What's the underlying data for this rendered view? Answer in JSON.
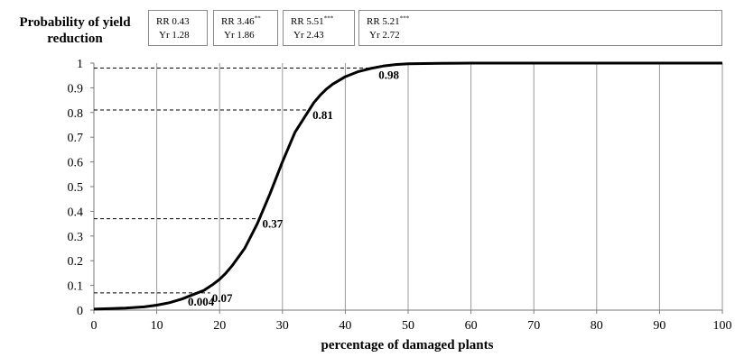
{
  "chart_data": {
    "type": "line",
    "ylabel": "Probability of yield reduction",
    "xlabel": "percentage of damaged plants",
    "xlim": [
      0,
      100
    ],
    "ylim": [
      0,
      1
    ],
    "x_ticks": [
      "0",
      "10",
      "20",
      "30",
      "40",
      "50",
      "60",
      "70",
      "80",
      "90",
      "100"
    ],
    "y_ticks": [
      "0",
      "0.1",
      "0.2",
      "0.3",
      "0.4",
      "0.5",
      "0.6",
      "0.7",
      "0.8",
      "0.9",
      "1"
    ],
    "grid": "vertical",
    "series": [
      {
        "x": [
          0,
          5,
          8,
          10,
          12,
          14,
          16,
          17.5,
          19,
          20,
          21,
          22,
          24,
          26,
          28,
          30,
          32,
          34,
          35,
          36,
          37,
          38,
          40,
          42,
          44,
          46,
          48,
          50,
          55,
          60,
          70,
          80,
          90,
          100
        ],
        "y": [
          0.004,
          0.008,
          0.013,
          0.02,
          0.03,
          0.045,
          0.065,
          0.08,
          0.105,
          0.125,
          0.15,
          0.18,
          0.25,
          0.35,
          0.47,
          0.6,
          0.72,
          0.8,
          0.84,
          0.87,
          0.895,
          0.915,
          0.945,
          0.965,
          0.978,
          0.988,
          0.994,
          0.997,
          0.999,
          1.0,
          1.0,
          1.0,
          1.0,
          1.0
        ]
      }
    ],
    "annotations": [
      {
        "label": "0.004",
        "x": 0,
        "y": 0.004
      },
      {
        "label": "0.07",
        "x": 18.5,
        "y": 0.07
      },
      {
        "label": "0.37",
        "x": 26.5,
        "y": 0.37
      },
      {
        "label": "0.81",
        "x": 34.5,
        "y": 0.81
      },
      {
        "label": "0.98",
        "x": 45,
        "y": 0.98
      }
    ],
    "risk_boxes": [
      {
        "rr": "RR 0.43",
        "sig": "",
        "yr": "Yr  1.28"
      },
      {
        "rr": "RR 3.46",
        "sig": "**",
        "yr": "Yr  1.86"
      },
      {
        "rr": "RR 5.51",
        "sig": "***",
        "yr": "Yr  2.43"
      },
      {
        "rr": "RR 5.21",
        "sig": "***",
        "yr": "Yr  2.72"
      }
    ]
  }
}
